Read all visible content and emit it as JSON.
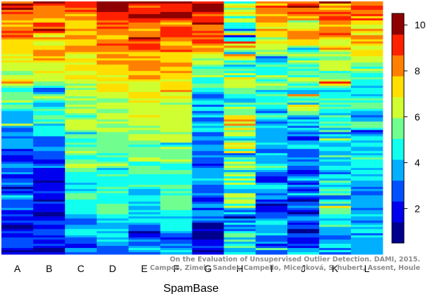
{
  "chart_data": {
    "type": "heatmap",
    "title": "",
    "xlabel": "SpamBase",
    "ylabel": "",
    "columns": [
      "A",
      "B",
      "C",
      "D",
      "E",
      "F",
      "G",
      "H",
      "I",
      "J",
      "K",
      "L"
    ],
    "rows": 120,
    "value_range": [
      0.5,
      10.5
    ],
    "colorbar": {
      "ticks": [
        2,
        4,
        6,
        8,
        10
      ],
      "levels": 10,
      "colors": [
        "#00008F",
        "#0000EF",
        "#0050FF",
        "#00AFFF",
        "#10FFEF",
        "#70FF8F",
        "#CFFF30",
        "#FFDF00",
        "#FF8000",
        "#FF2000",
        "#8F0000"
      ]
    },
    "column_profiles": {
      "A": [
        9.6,
        8.5,
        7.0,
        5.6,
        4.0,
        2.8,
        2.2,
        1.8,
        1.6,
        1.5
      ],
      "B": [
        9.4,
        8.5,
        7.2,
        5.8,
        4.2,
        3.0,
        2.3,
        1.9,
        1.6,
        1.5
      ],
      "C": [
        9.3,
        8.2,
        7.2,
        6.6,
        6.0,
        5.5,
        4.8,
        4.2,
        3.5,
        2.5
      ],
      "D": [
        9.8,
        9.0,
        8.2,
        7.2,
        6.2,
        5.4,
        4.9,
        4.5,
        3.8,
        2.6
      ],
      "E": [
        9.8,
        9.0,
        8.3,
        7.3,
        6.3,
        5.6,
        4.9,
        4.2,
        3.0,
        2.6
      ],
      "F": [
        9.7,
        8.7,
        8.0,
        7.2,
        6.4,
        5.8,
        5.2,
        4.6,
        3.8,
        2.5
      ],
      "G": [
        9.7,
        8.9,
        6.5,
        4.4,
        3.4,
        3.0,
        2.8,
        2.5,
        2.0,
        1.4
      ],
      "H": [
        5.5,
        5.2,
        5.0,
        6.2,
        6.6,
        6.2,
        5.2,
        4.5,
        4.6,
        4.3
      ],
      "I": [
        9.2,
        7.6,
        6.0,
        5.0,
        4.4,
        3.9,
        3.5,
        3.2,
        3.0,
        2.8
      ],
      "J": [
        9.2,
        8.0,
        6.2,
        5.0,
        4.0,
        3.4,
        3.1,
        2.8,
        2.5,
        2.2
      ],
      "K": [
        8.8,
        7.6,
        6.4,
        5.4,
        4.6,
        4.2,
        4.0,
        3.9,
        3.6,
        3.2
      ],
      "L": [
        9.0,
        7.8,
        6.3,
        5.3,
        4.5,
        4.0,
        3.8,
        3.6,
        3.4,
        3.0
      ]
    },
    "column_spread": {
      "A": 2.0,
      "B": 2.0,
      "C": 1.6,
      "D": 1.4,
      "E": 1.4,
      "F": 1.5,
      "G": 2.0,
      "H": 3.6,
      "I": 2.4,
      "J": 2.6,
      "K": 2.6,
      "L": 2.2
    },
    "watermark": [
      "On the Evaluation of Unsupervised Outlier Detection. DAMI, 2015.",
      "Campos, Zimek, Sander, Campello, Micenková, Schubert, Assent, Houle"
    ]
  }
}
